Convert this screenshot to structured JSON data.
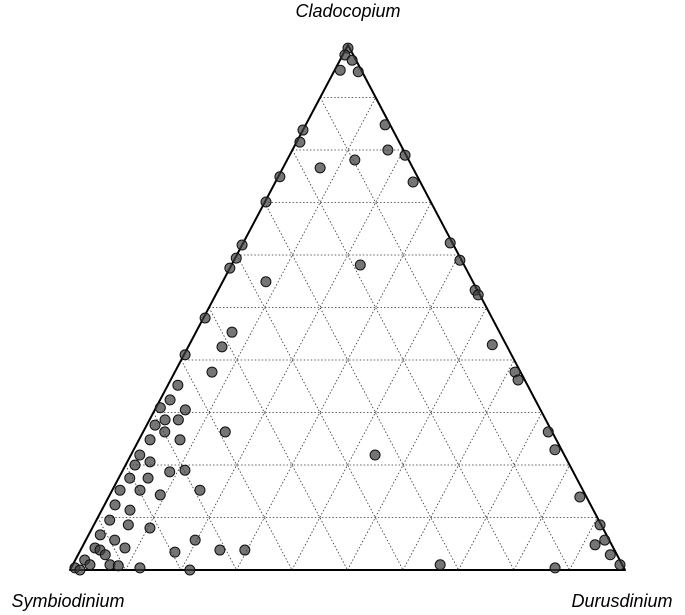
{
  "chart_data": {
    "type": "ternary",
    "labels": [
      "Symbiodinium",
      "Cladocopium",
      "Durusdinium"
    ],
    "ticks": [
      10,
      20,
      30,
      40,
      50,
      60,
      70,
      80,
      90
    ],
    "grid": true,
    "color": "#3a3a3a",
    "points": [
      [
        0.3,
        99.4,
        0.3
      ],
      [
        1.5,
        98.1,
        0.4
      ],
      [
        0.7,
        97.1,
        2.2
      ],
      [
        3.8,
        95.2,
        1.0
      ],
      [
        0.7,
        94.9,
        4.4
      ],
      [
        16.2,
        83.8,
        0.0
      ],
      [
        0.9,
        84.8,
        14.3
      ],
      [
        17.9,
        81.5,
        0.6
      ],
      [
        2.8,
        80.0,
        17.2
      ],
      [
        9.7,
        78.1,
        12.2
      ],
      [
        0.2,
        79.0,
        20.8
      ],
      [
        16.7,
        76.6,
        6.7
      ],
      [
        24.8,
        74.9,
        0.3
      ],
      [
        1.3,
        73.9,
        24.8
      ],
      [
        29.7,
        70.1,
        0.2
      ],
      [
        38.1,
        61.9,
        0.0
      ],
      [
        40.4,
        59.4,
        0.2
      ],
      [
        42.5,
        57.5,
        0.0
      ],
      [
        0.4,
        62.3,
        37.3
      ],
      [
        0.3,
        59.0,
        40.7
      ],
      [
        18.7,
        58.1,
        23.2
      ],
      [
        37.3,
        54.9,
        7.8
      ],
      [
        0.4,
        53.3,
        46.3
      ],
      [
        0.3,
        52.4,
        47.3
      ],
      [
        51.7,
        48.0,
        0.3
      ],
      [
        48.2,
        45.3,
        6.5
      ],
      [
        51.4,
        42.5,
        6.1
      ],
      [
        2.5,
        42.9,
        54.6
      ],
      [
        58.8,
        41.0,
        0.2
      ],
      [
        55.6,
        37.7,
        6.7
      ],
      [
        1.0,
        37.7,
        61.3
      ],
      [
        63.0,
        35.2,
        1.8
      ],
      [
        65.8,
        32.4,
        1.8
      ],
      [
        68.3,
        30.9,
        0.8
      ],
      [
        64.0,
        30.5,
        5.5
      ],
      [
        68.6,
        28.6,
        2.8
      ],
      [
        66.2,
        28.6,
        5.2
      ],
      [
        70.9,
        27.6,
        1.5
      ],
      [
        73.2,
        24.8,
        2.0
      ],
      [
        69.8,
        26.3,
        3.9
      ],
      [
        67.8,
        24.8,
        7.4
      ],
      [
        58.9,
        26.3,
        14.8
      ],
      [
        76.5,
        21.9,
        1.6
      ],
      [
        78.3,
        20.0,
        1.7
      ],
      [
        75.3,
        20.6,
        4.1
      ],
      [
        80.5,
        17.5,
        2.0
      ],
      [
        77.2,
        17.5,
        5.3
      ],
      [
        72.7,
        18.7,
        8.6
      ],
      [
        69.8,
        19.0,
        11.2
      ],
      [
        34.1,
        21.9,
        44.0
      ],
      [
        83.4,
        15.2,
        1.4
      ],
      [
        79.8,
        15.2,
        5.0
      ],
      [
        76.6,
        14.3,
        9.1
      ],
      [
        69.0,
        15.2,
        15.8
      ],
      [
        85.7,
        12.4,
        1.9
      ],
      [
        83.5,
        11.4,
        5.1
      ],
      [
        88.1,
        9.5,
        2.4
      ],
      [
        85.2,
        8.6,
        6.2
      ],
      [
        81.6,
        8.0,
        10.4
      ],
      [
        91.2,
        6.7,
        2.1
      ],
      [
        89.1,
        5.7,
        5.2
      ],
      [
        88.0,
        4.2,
        7.8
      ],
      [
        93.4,
        4.2,
        2.4
      ],
      [
        79.4,
        3.4,
        17.2
      ],
      [
        74.6,
        5.7,
        19.7
      ],
      [
        71.1,
        3.8,
        25.1
      ],
      [
        66.6,
        3.8,
        29.6
      ],
      [
        96.4,
        1.9,
        1.7
      ],
      [
        98.9,
        0.4,
        0.7
      ],
      [
        95.9,
        1.0,
        3.1
      ],
      [
        92.3,
        1.0,
        6.7
      ],
      [
        90.9,
        0.8,
        8.3
      ],
      [
        87.2,
        0.4,
        12.4
      ],
      [
        78.4,
        0.0,
        21.6
      ],
      [
        32.8,
        1.0,
        66.2
      ],
      [
        12.4,
        0.4,
        87.2
      ],
      [
        1.2,
        13.9,
        84.9
      ],
      [
        0.7,
        26.3,
        73.0
      ],
      [
        1.2,
        22.9,
        75.9
      ],
      [
        0.2,
        8.6,
        91.2
      ],
      [
        3.0,
        4.8,
        92.2
      ],
      [
        1.2,
        2.9,
        95.9
      ],
      [
        0.4,
        1.0,
        98.6
      ],
      [
        0.8,
        5.7,
        93.5
      ],
      [
        1.2,
        36.2,
        62.6
      ],
      [
        92.7,
        3.8,
        3.5
      ],
      [
        98.2,
        0.0,
        1.8
      ],
      [
        92.2,
        2.9,
        4.9
      ]
    ]
  }
}
